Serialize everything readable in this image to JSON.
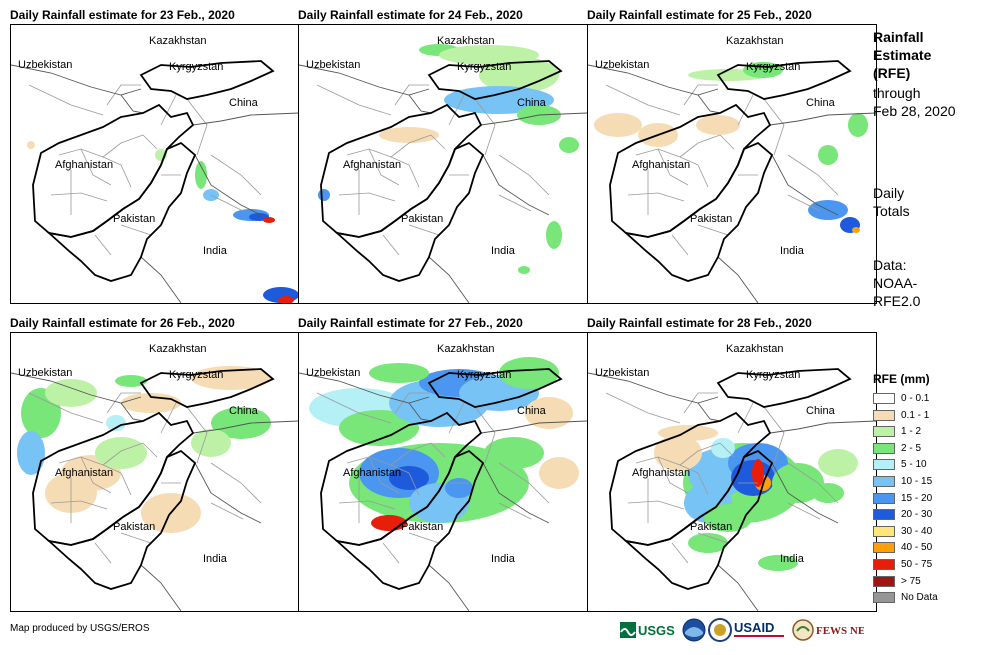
{
  "panels": [
    {
      "title": "Daily Rainfall estimate for 23 Feb., 2020",
      "day": 23
    },
    {
      "title": "Daily Rainfall estimate for 24 Feb., 2020",
      "day": 24
    },
    {
      "title": "Daily Rainfall estimate for 25 Feb., 2020",
      "day": 25
    },
    {
      "title": "Daily Rainfall estimate for 26 Feb., 2020",
      "day": 26
    },
    {
      "title": "Daily Rainfall estimate for 27 Feb., 2020",
      "day": 27
    },
    {
      "title": "Daily Rainfall estimate for 28 Feb., 2020",
      "day": 28
    }
  ],
  "country_labels": {
    "kazakhstan": "Kazakhstan",
    "uzbekistan": "Uzbekistan",
    "kyrgyzstan": "Kyrgyzstan",
    "china": "China",
    "afghanistan": "Afghanistan",
    "pakistan": "Pakistan",
    "india": "India"
  },
  "side": {
    "title_line1": "Rainfall",
    "title_line2": "Estimate",
    "title_line3": "(RFE)",
    "through_line1": "through",
    "through_line2": "Feb 28, 2020",
    "daily_line1": "Daily",
    "daily_line2": "Totals",
    "data_line1": "Data:",
    "data_line2": "NOAA-",
    "data_line3": "RFE2.0"
  },
  "legend": {
    "title": "RFE (mm)",
    "items": [
      {
        "label": "0 - 0.1",
        "color": "#ffffff"
      },
      {
        "label": "0.1 - 1",
        "color": "#f5dcb4"
      },
      {
        "label": "1 - 2",
        "color": "#bdf2a6"
      },
      {
        "label": "2 - 5",
        "color": "#78e678"
      },
      {
        "label": "5 - 10",
        "color": "#b4f0f5"
      },
      {
        "label": "10 - 15",
        "color": "#78c3f5"
      },
      {
        "label": "15 - 20",
        "color": "#4b96f0"
      },
      {
        "label": "20 - 30",
        "color": "#1e5adc"
      },
      {
        "label": "30 - 40",
        "color": "#ffe678"
      },
      {
        "label": "40 - 50",
        "color": "#ffa00a"
      },
      {
        "label": "50 - 75",
        "color": "#e61e0a"
      },
      {
        "label": "> 75",
        "color": "#a01414"
      },
      {
        "label": "No Data",
        "color": "#969696"
      }
    ]
  },
  "credit": "Map produced by USGS/EROS",
  "logos": {
    "usgs": "USGS",
    "usaid": "USAID",
    "fewsnet": "FEWS NET"
  }
}
